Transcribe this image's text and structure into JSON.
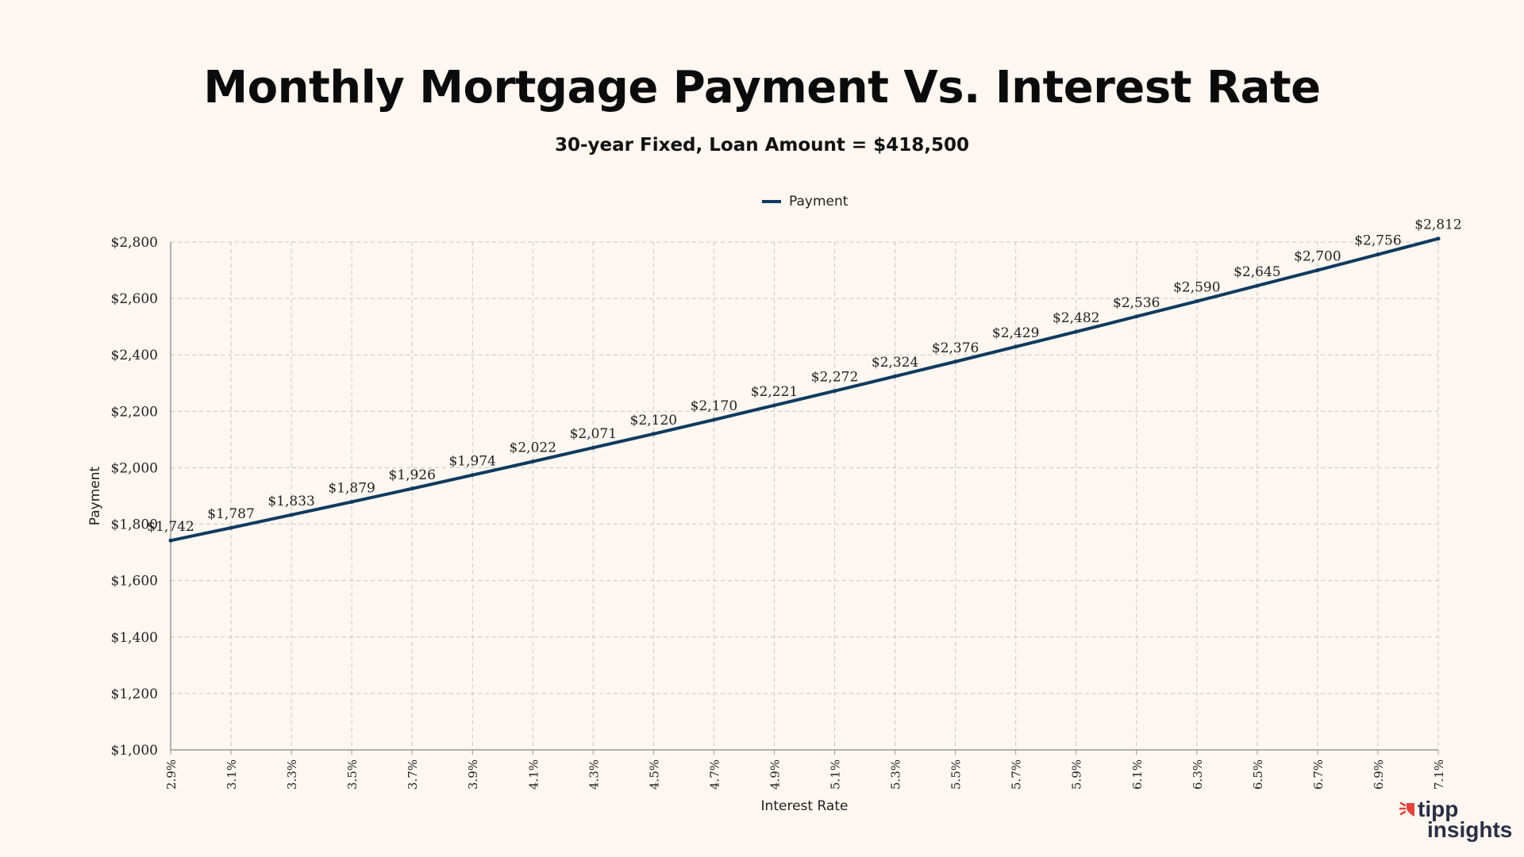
{
  "chart_data": {
    "type": "line",
    "title": "Monthly Mortgage Payment Vs. Interest Rate",
    "subtitle": "30-year Fixed, Loan Amount = $418,500",
    "xlabel": "Interest Rate",
    "ylabel": "Payment",
    "legend_position": "top-center",
    "grid": true,
    "ylim": [
      1000,
      2800
    ],
    "yticks": [
      1000,
      1200,
      1400,
      1600,
      1800,
      2000,
      2200,
      2400,
      2600,
      2800
    ],
    "ytick_labels": [
      "$1,000",
      "$1,200",
      "$1,400",
      "$1,600",
      "$1,800",
      "$2,000",
      "$2,200",
      "$2,400",
      "$2,600",
      "$2,800"
    ],
    "categories": [
      "2.9%",
      "3.1%",
      "3.3%",
      "3.5%",
      "3.7%",
      "3.9%",
      "4.1%",
      "4.3%",
      "4.5%",
      "4.7%",
      "4.9%",
      "5.1%",
      "5.3%",
      "5.5%",
      "5.7%",
      "5.9%",
      "6.1%",
      "6.3%",
      "6.5%",
      "6.7%",
      "6.9%",
      "7.1%"
    ],
    "series": [
      {
        "name": "Payment",
        "color": "#0f3a5f",
        "values": [
          1742,
          1787,
          1833,
          1879,
          1926,
          1974,
          2022,
          2071,
          2120,
          2170,
          2221,
          2272,
          2324,
          2376,
          2429,
          2482,
          2536,
          2590,
          2645,
          2700,
          2756,
          2812
        ],
        "labels": [
          "$1,742",
          "$1,787",
          "$1,833",
          "$1,879",
          "$1,926",
          "$1,974",
          "$2,022",
          "$2,071",
          "$2,120",
          "$2,170",
          "$2,221",
          "$2,272",
          "$2,324",
          "$2,376",
          "$2,429",
          "$2,482",
          "$2,536",
          "$2,590",
          "$2,645",
          "$2,700",
          "$2,756",
          "$2,812"
        ]
      }
    ]
  },
  "logo": {
    "line1": "tipp",
    "line2": "insights",
    "accent": "#e0443a",
    "color": "#2a2f45"
  }
}
